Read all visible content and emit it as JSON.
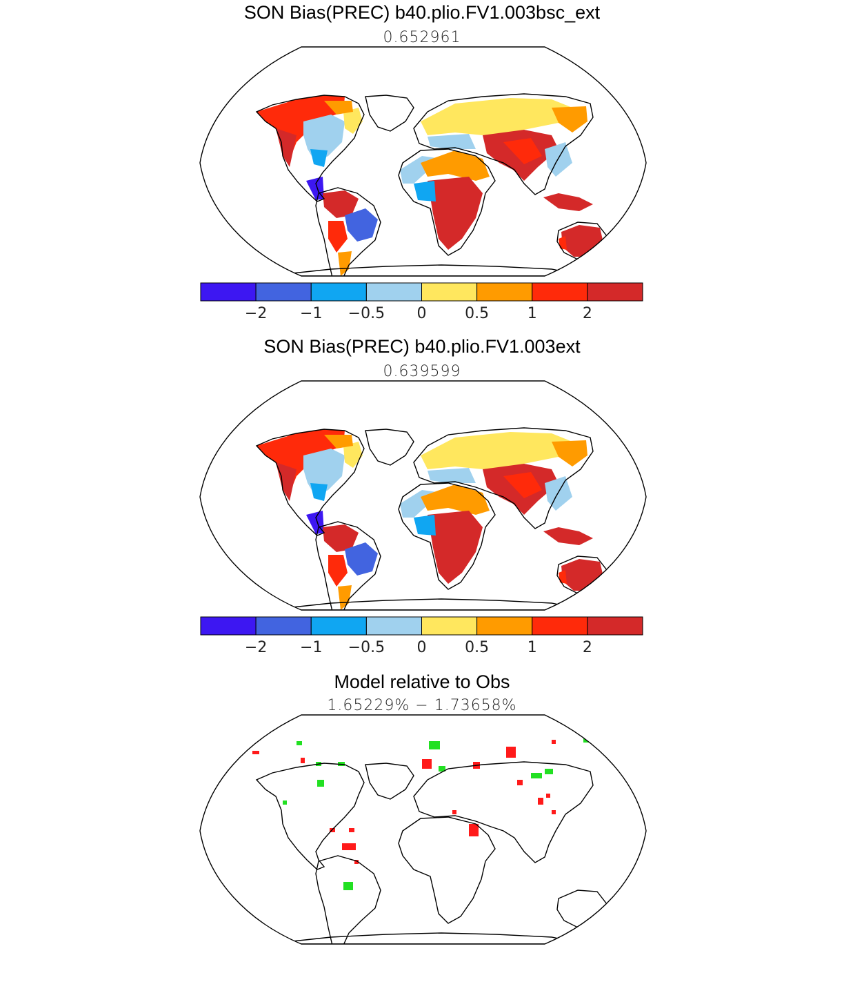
{
  "panels": [
    {
      "title": "SON Bias(PREC) b40.plio.FV1.003bsc_ext",
      "subtitle": "0.652961"
    },
    {
      "title": "SON Bias(PREC) b40.plio.FV1.003ext",
      "subtitle": "0.639599"
    },
    {
      "title": "Model relative to Obs",
      "subtitle": "1.65229% − 1.73658%"
    }
  ],
  "colorbar": {
    "colors": [
      "#3d17f2",
      "#4264e0",
      "#10a6f2",
      "#a0d1ee",
      "#ffe75e",
      "#ff9b00",
      "#ff2a0a",
      "#d42929"
    ],
    "labels": [
      "−2",
      "−1",
      "−0.5",
      "0",
      "0.5",
      "1",
      "2"
    ]
  },
  "diff_colors": {
    "positive": "#ff1a1a",
    "negative": "#22e022"
  }
}
